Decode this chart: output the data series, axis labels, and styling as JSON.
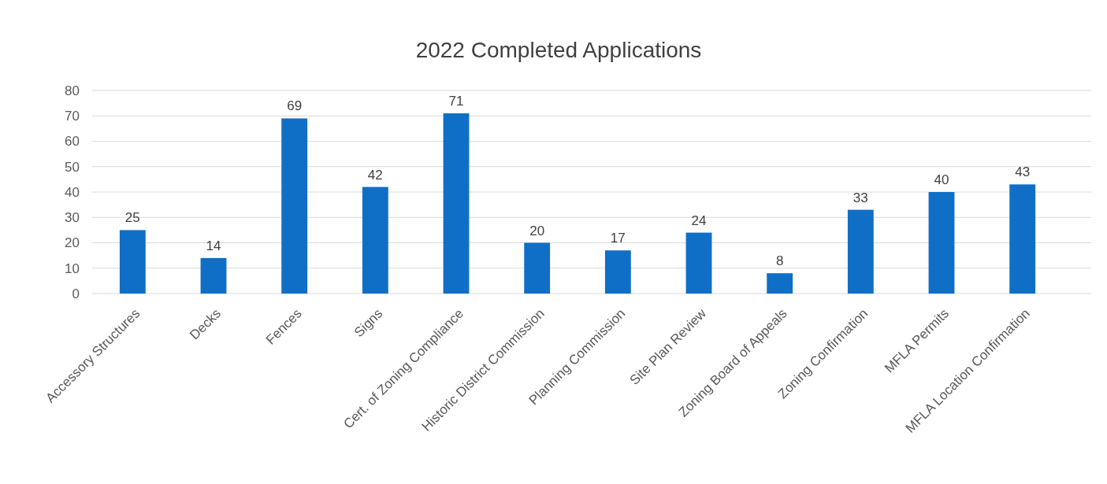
{
  "chart_data": {
    "type": "bar",
    "title": "2022 Completed Applications",
    "categories": [
      "Accessory Structures",
      "Decks",
      "Fences",
      "Signs",
      "Cert. of Zoning Compliance",
      "Historic District Commission",
      "Planning Commission",
      "Site Plan Review",
      "Zoning Board of Appeals",
      "Zoning Confirmation",
      "MFLA Permits",
      "MFLA Location Confirmation"
    ],
    "values": [
      25,
      14,
      69,
      42,
      71,
      20,
      17,
      24,
      8,
      33,
      40,
      43
    ],
    "color": "#0f6fc6",
    "ylim": [
      0,
      80
    ],
    "yticks": [
      0,
      10,
      20,
      30,
      40,
      50,
      60,
      70,
      80
    ],
    "grid": "y",
    "data_labels": true
  }
}
